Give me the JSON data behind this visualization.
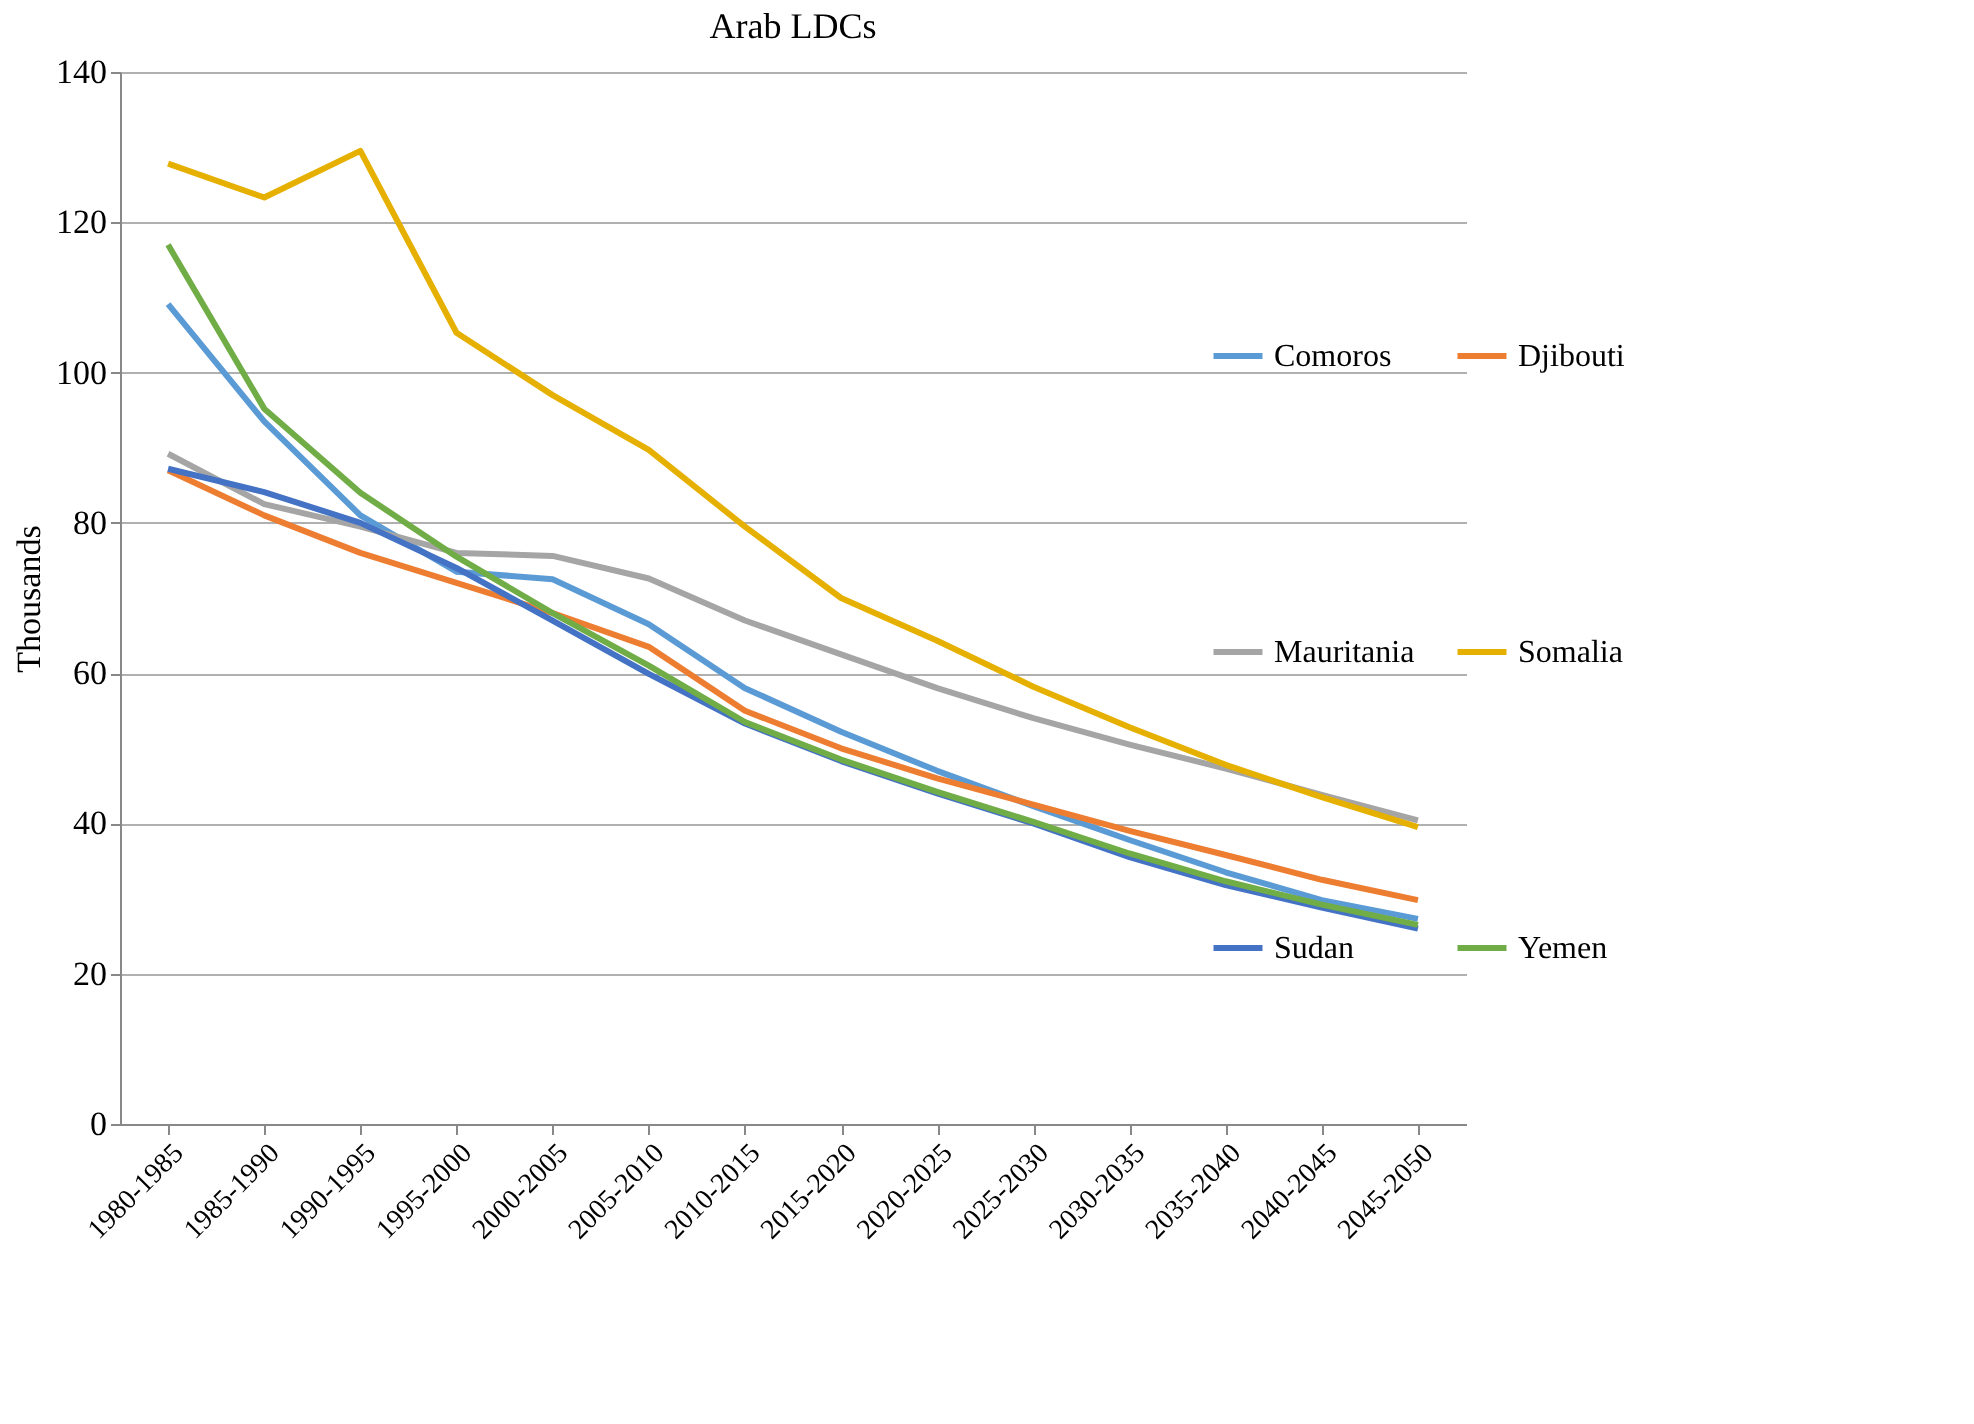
{
  "chart_data": {
    "type": "line",
    "title": "Arab LDCs",
    "ylabel": "Thousands",
    "categories": [
      "1980-1985",
      "1985-1990",
      "1990-1995",
      "1995-2000",
      "2000-2005",
      "2005-2010",
      "2010-2015",
      "2015-2020",
      "2020-2025",
      "2025-2030",
      "2030-2035",
      "2035-2040",
      "2040-2045",
      "2045-2050"
    ],
    "series": [
      {
        "name": "Comoros",
        "color": "#5b9bd5",
        "values": [
          109.1,
          93.5,
          81,
          73.5,
          72.5,
          66.5,
          58,
          52.2,
          47,
          42.3,
          37.8,
          33.5,
          29.8,
          27.3
        ]
      },
      {
        "name": "Djibouti",
        "color": "#ed7d31",
        "values": [
          87,
          81,
          76,
          72,
          68,
          63.5,
          55,
          50,
          46,
          42.5,
          39,
          35.8,
          32.5,
          29.8
        ]
      },
      {
        "name": "Mauritania",
        "color": "#a5a5a5",
        "values": [
          89.2,
          82.5,
          79.5,
          76,
          75.6,
          72.6,
          67,
          62.5,
          58,
          54,
          50.5,
          47.3,
          43.8,
          40.4
        ]
      },
      {
        "name": "Somalia",
        "color": "#e6b000",
        "values": [
          127.8,
          123.3,
          129.5,
          105.3,
          97,
          89.7,
          79.5,
          70,
          64.3,
          58.2,
          52.8,
          47.8,
          43.5,
          39.5
        ]
      },
      {
        "name": "Sudan",
        "color": "#4472c4",
        "values": [
          87.2,
          84.1,
          80,
          74,
          67,
          59.9,
          53.3,
          48.3,
          44,
          40,
          35.5,
          31.8,
          28.8,
          26.0
        ]
      },
      {
        "name": "Yemen",
        "color": "#70ad47",
        "values": [
          117,
          95.2,
          84,
          75.5,
          68,
          61,
          53.5,
          48.5,
          44.2,
          40.2,
          36,
          32.3,
          29.2,
          26.5
        ]
      }
    ],
    "ylim": [
      0,
      140
    ],
    "yticks": [
      0,
      20,
      40,
      60,
      80,
      100,
      120,
      140
    ],
    "grid": "y",
    "legend": "right",
    "marker": "none",
    "line_style": "solid"
  }
}
